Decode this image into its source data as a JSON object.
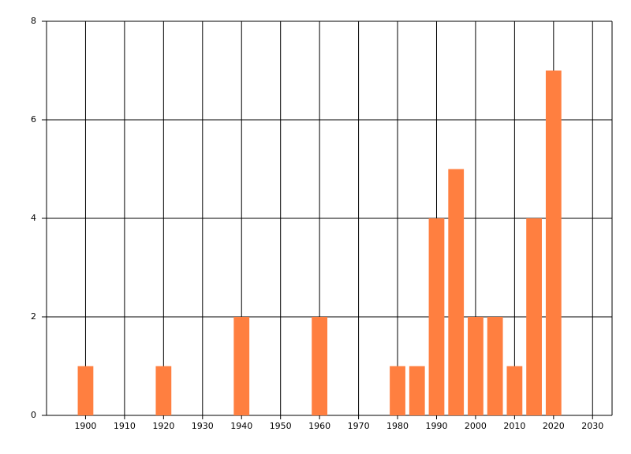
{
  "chart_data": {
    "type": "bar",
    "x": [
      1900,
      1920,
      1940,
      1960,
      1980,
      1985,
      1990,
      1995,
      2000,
      2005,
      2010,
      2015,
      2020
    ],
    "values": [
      1,
      1,
      2,
      2,
      1,
      1,
      4,
      5,
      2,
      2,
      1,
      4,
      7
    ],
    "color": "#ff7f40",
    "xlim": [
      1890,
      2035
    ],
    "xticks": [
      1900,
      1910,
      1920,
      1930,
      1940,
      1950,
      1960,
      1970,
      1980,
      1990,
      2000,
      2010,
      2020,
      2030
    ],
    "ylim": [
      0,
      8
    ],
    "yticks": [
      0,
      2,
      4,
      6,
      8
    ],
    "grid": true
  }
}
